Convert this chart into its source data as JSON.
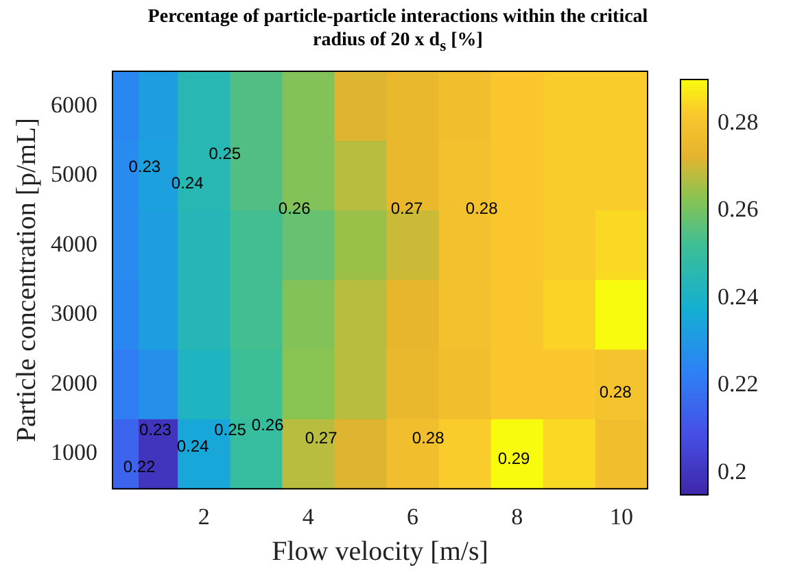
{
  "chart_data": {
    "type": "heatmap",
    "title": "Percentage of particle-particle interactions within the critical radius of 20 x d$_{s}$  [%]",
    "xlabel": "Flow velocity [m/s]",
    "ylabel": "Particle concentration [p/mL]",
    "x": [
      0.5,
      1,
      2,
      3,
      4,
      5,
      6,
      7,
      8,
      9,
      10
    ],
    "y_categories": [
      "6000",
      "5000",
      "4000",
      "3000",
      "2000",
      "1000"
    ],
    "cells": [
      [
        0.225,
        0.232,
        0.245,
        0.255,
        0.262,
        0.272,
        0.275,
        0.278,
        0.282,
        0.283,
        0.283
      ],
      [
        0.226,
        0.233,
        0.245,
        0.255,
        0.262,
        0.268,
        0.275,
        0.279,
        0.282,
        0.283,
        0.283
      ],
      [
        0.226,
        0.232,
        0.244,
        0.253,
        0.258,
        0.265,
        0.27,
        0.279,
        0.282,
        0.283,
        0.285
      ],
      [
        0.225,
        0.232,
        0.244,
        0.253,
        0.262,
        0.268,
        0.274,
        0.279,
        0.282,
        0.284,
        0.29
      ],
      [
        0.222,
        0.228,
        0.242,
        0.252,
        0.263,
        0.268,
        0.275,
        0.278,
        0.282,
        0.282,
        0.28
      ],
      [
        0.215,
        0.2,
        0.235,
        0.25,
        0.268,
        0.272,
        0.278,
        0.283,
        0.29,
        0.285,
        0.278
      ]
    ],
    "xlim": [
      0.25,
      10.5
    ],
    "xticks": [
      2,
      4,
      6,
      8,
      10
    ],
    "clim": [
      0.195,
      0.29
    ],
    "cticks": [
      0.2,
      0.22,
      0.24,
      0.26,
      0.28
    ],
    "annotations": [
      "0.23",
      "0.24",
      "0.25",
      "0.26",
      "0.27",
      "0.28",
      "0.28",
      "0.29",
      "0.28",
      "0.27",
      "0.26",
      "0.25",
      "0.24",
      "0.23",
      "0.22"
    ]
  }
}
